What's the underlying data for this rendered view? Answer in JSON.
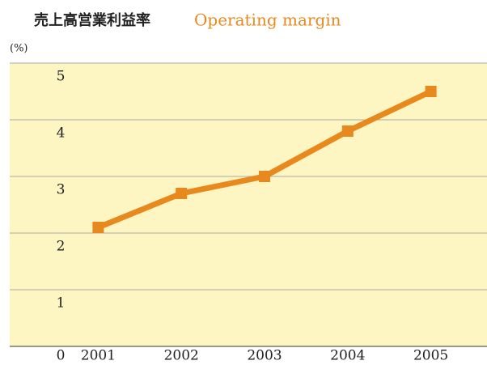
{
  "chart_data": {
    "type": "line",
    "title": "売上高営業利益率",
    "subtitle": "Operating margin",
    "y_label": "(%)",
    "categories": [
      "2001",
      "2002",
      "2003",
      "2004",
      "2005"
    ],
    "series": [
      {
        "name": "Operating margin",
        "color": "#e8891e",
        "values": [
          2.1,
          2.7,
          3.0,
          3.8,
          4.5
        ]
      }
    ],
    "ylim": [
      0,
      5
    ],
    "yticks": [
      0,
      1,
      2,
      3,
      4,
      5
    ],
    "grid": true
  }
}
